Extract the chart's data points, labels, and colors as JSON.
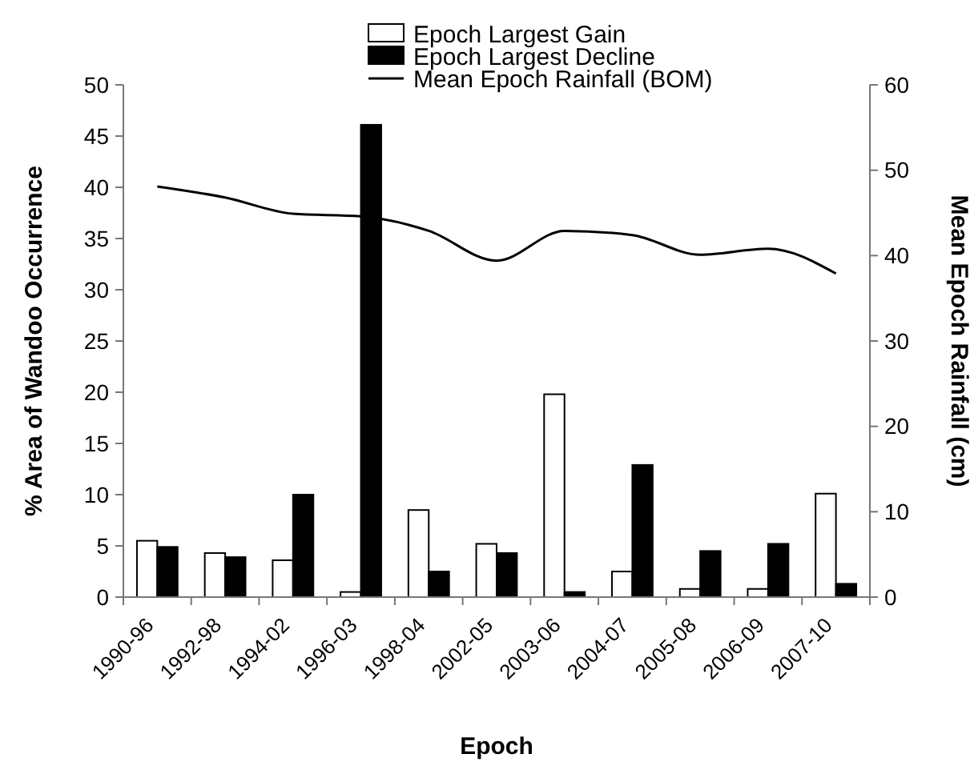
{
  "chart_data": {
    "type": "bar",
    "xlabel": "Epoch",
    "ylabel": "% Area of Wandoo Occurrence",
    "y2label": "Mean Epoch Rainfall (cm)",
    "categories": [
      "1990-96",
      "1992-98",
      "1994-02",
      "1996-03",
      "1998-04",
      "2002-05",
      "2003-06",
      "2004-07",
      "2005-08",
      "2006-09",
      "2007-10"
    ],
    "series": [
      {
        "name": "Epoch Largest Gain",
        "color": "#ffffff",
        "values": [
          5.5,
          4.3,
          3.6,
          0.5,
          8.5,
          5.2,
          19.8,
          2.5,
          0.8,
          0.8,
          10.1
        ]
      },
      {
        "name": "Epoch Largest Decline",
        "color": "#000000",
        "values": [
          4.9,
          3.9,
          10,
          46.1,
          2.5,
          4.3,
          0.5,
          12.9,
          4.5,
          5.2,
          1.3
        ]
      },
      {
        "name": "Mean Epoch Rainfall (BOM)",
        "type": "line",
        "axis": "y2",
        "color": "#000000",
        "values": [
          48.1,
          46.8,
          44.9,
          44.6,
          42.9,
          39.4,
          42.9,
          42.4,
          40.1,
          40.8,
          37.9
        ]
      }
    ],
    "ylim": [
      0,
      50
    ],
    "yticks": [
      0,
      5,
      10,
      15,
      20,
      25,
      30,
      35,
      40,
      45,
      50
    ],
    "y2lim": [
      0,
      60
    ],
    "y2ticks": [
      0,
      10,
      20,
      30,
      40,
      50,
      60
    ],
    "grid": false,
    "legend": "top",
    "marker": "none",
    "line_style": "solid"
  }
}
